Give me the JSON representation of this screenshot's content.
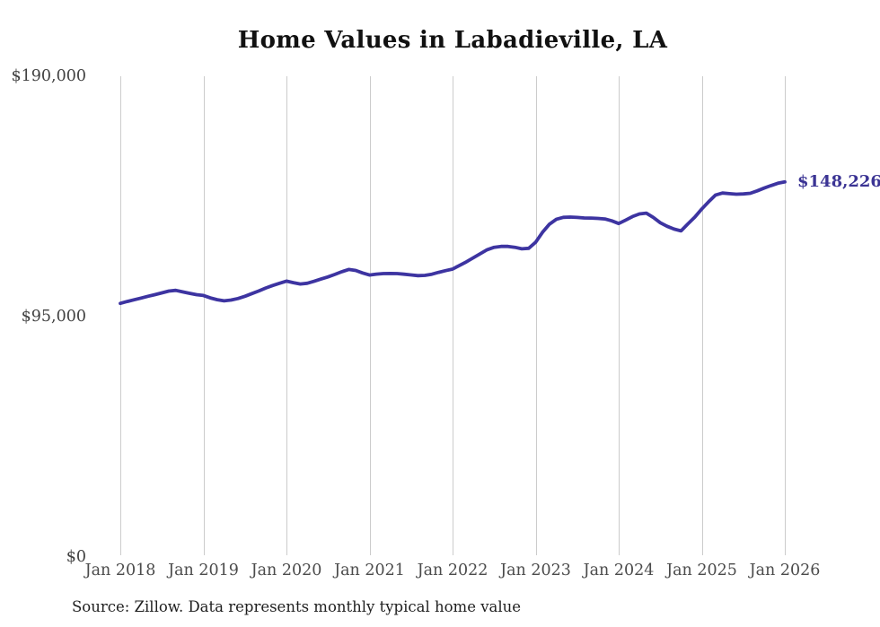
{
  "chart_data": {
    "type": "line",
    "title": "Home Values in Labadieville, LA",
    "xlabel": "",
    "ylabel": "",
    "x_unit": "month",
    "months": [
      "2018-01",
      "2018-02",
      "2018-03",
      "2018-04",
      "2018-05",
      "2018-06",
      "2018-07",
      "2018-08",
      "2018-09",
      "2018-10",
      "2018-11",
      "2018-12",
      "2019-01",
      "2019-02",
      "2019-03",
      "2019-04",
      "2019-05",
      "2019-06",
      "2019-07",
      "2019-08",
      "2019-09",
      "2019-10",
      "2019-11",
      "2019-12",
      "2020-01",
      "2020-02",
      "2020-03",
      "2020-04",
      "2020-05",
      "2020-06",
      "2020-07",
      "2020-08",
      "2020-09",
      "2020-10",
      "2020-11",
      "2020-12",
      "2021-01",
      "2021-02",
      "2021-03",
      "2021-04",
      "2021-05",
      "2021-06",
      "2021-07",
      "2021-08",
      "2021-09",
      "2021-10",
      "2021-11",
      "2021-12",
      "2022-01",
      "2022-02",
      "2022-03",
      "2022-04",
      "2022-05",
      "2022-06",
      "2022-07",
      "2022-08",
      "2022-09",
      "2022-10",
      "2022-11",
      "2022-12",
      "2023-01",
      "2023-02",
      "2023-03",
      "2023-04",
      "2023-05",
      "2023-06",
      "2023-07",
      "2023-08",
      "2023-09",
      "2023-10",
      "2023-11",
      "2023-12",
      "2024-01",
      "2024-02",
      "2024-03",
      "2024-04",
      "2024-05",
      "2024-06",
      "2024-07",
      "2024-08",
      "2024-09",
      "2024-10",
      "2024-11",
      "2024-12",
      "2025-01",
      "2025-02",
      "2025-03",
      "2025-04",
      "2025-05",
      "2025-06",
      "2025-07",
      "2025-08",
      "2025-09",
      "2025-10",
      "2025-11",
      "2025-12",
      "2026-01"
    ],
    "values": [
      100250,
      101000,
      101650,
      102350,
      103050,
      103700,
      104400,
      105100,
      105400,
      104800,
      104200,
      103700,
      103350,
      102400,
      101700,
      101250,
      101550,
      102150,
      103050,
      104100,
      105150,
      106300,
      107300,
      108200,
      109050,
      108450,
      107900,
      108200,
      108950,
      109850,
      110700,
      111700,
      112750,
      113650,
      113250,
      112250,
      111450,
      111800,
      112000,
      112050,
      112000,
      111750,
      111500,
      111200,
      111300,
      111750,
      112500,
      113200,
      113800,
      115250,
      116650,
      118250,
      119850,
      121450,
      122400,
      122750,
      122750,
      122400,
      121800,
      122000,
      124400,
      128350,
      131550,
      133500,
      134250,
      134350,
      134200,
      134000,
      133950,
      133800,
      133600,
      132850,
      131800,
      133150,
      134550,
      135600,
      135900,
      134200,
      132100,
      130700,
      129600,
      128900,
      131650,
      134350,
      137550,
      140400,
      143050,
      143850,
      143600,
      143400,
      143500,
      143750,
      144700,
      145800,
      146800,
      147700,
      148226
    ],
    "x_tick_labels": [
      "Jan 2018",
      "Jan 2019",
      "Jan 2020",
      "Jan 2021",
      "Jan 2022",
      "Jan 2023",
      "Jan 2024",
      "Jan 2025",
      "Jan 2026"
    ],
    "y_ticks": [
      {
        "label": "$0",
        "value": 0
      },
      {
        "label": "$95,000",
        "value": 95000
      },
      {
        "label": "$190,000",
        "value": 190000
      }
    ],
    "ylim": [
      0,
      190000
    ],
    "grid": "vertical-only",
    "legend": "none",
    "end_label": {
      "text": "$148,226",
      "value": 148226
    },
    "source": "Source: Zillow. Data represents monthly typical home value",
    "colors": {
      "line": "#3d34a1",
      "end_label": "#3b3494",
      "grid": "#cccccc",
      "title": "#111111",
      "y_axis_text": "#414141",
      "x_axis_text": "#4b4b4b",
      "source_text": "#1f1f1f",
      "background": "#ffffff"
    }
  }
}
